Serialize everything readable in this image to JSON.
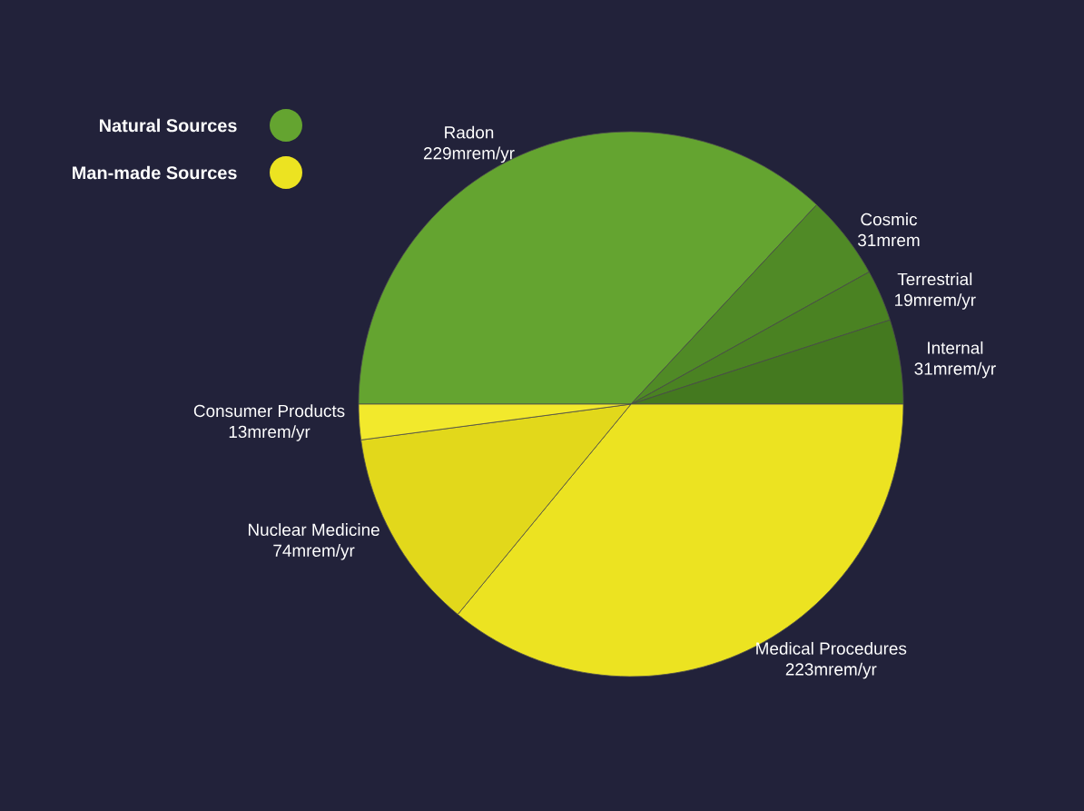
{
  "chart_data": {
    "type": "pie",
    "categories": [
      "Radon",
      "Cosmic",
      "Terrestrial",
      "Internal",
      "Medical Procedures",
      "Nuclear Medicine",
      "Consumer Products"
    ],
    "values": [
      229,
      31,
      19,
      31,
      223,
      74,
      13
    ],
    "value_labels": [
      "229mrem/yr",
      "31mrem",
      "19mrem/yr",
      "31mrem/yr",
      "223mrem/yr",
      "74mrem/yr",
      "13mrem/yr"
    ],
    "colors": [
      "#64a430",
      "#508a26",
      "#4a8222",
      "#44791f",
      "#ece321",
      "#e2d81b",
      "#f2e92c"
    ],
    "annotations": [
      "Natural Sources",
      "Man-made Sources"
    ]
  }
}
